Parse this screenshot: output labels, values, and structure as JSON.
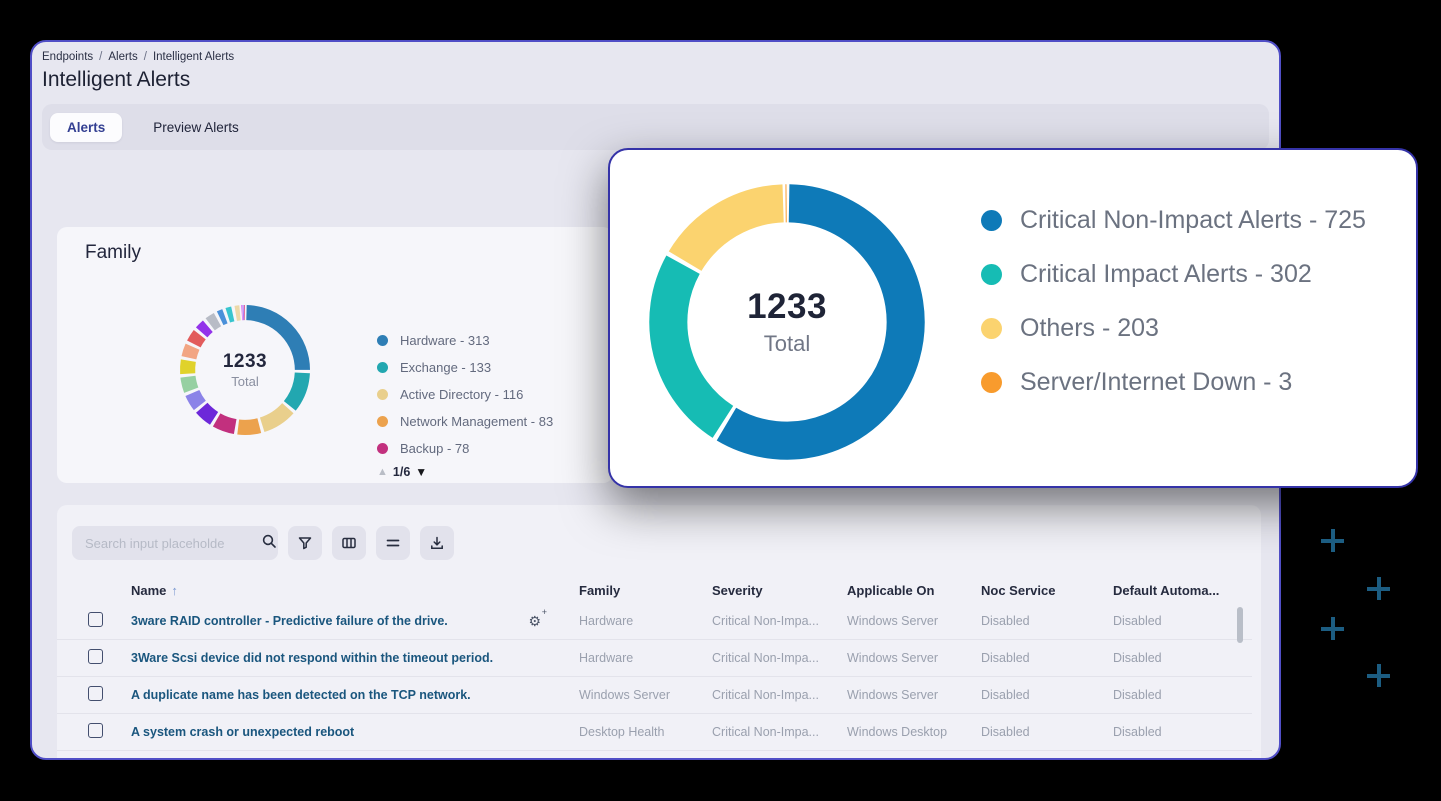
{
  "breadcrumb": {
    "items": [
      "Endpoints",
      "Alerts",
      "Intelligent Alerts"
    ],
    "separator": "/"
  },
  "page": {
    "title": "Intelligent Alerts"
  },
  "tabs": [
    {
      "label": "Alerts",
      "active": true
    },
    {
      "label": "Preview Alerts",
      "active": false
    }
  ],
  "family_card": {
    "title": "Family",
    "center_value": "1233",
    "center_label": "Total",
    "pagination": {
      "label": "1/6",
      "prev_icon": "▲",
      "next_icon": "▼"
    }
  },
  "overlay_card": {
    "center_value": "1233",
    "center_label": "Total"
  },
  "chart_data": [
    {
      "type": "donut",
      "title": "Family",
      "total": 1233,
      "center_text": [
        "1233",
        "Total"
      ],
      "legend_position": "right",
      "legend_pagination": "1/6",
      "segments": [
        {
          "label": "Hardware",
          "value": 313,
          "color": "#2e7eb5"
        },
        {
          "label": "Exchange",
          "value": 133,
          "color": "#22a7b0"
        },
        {
          "label": "Active Directory",
          "value": 116,
          "color": "#e9cf8c"
        },
        {
          "label": "Network Management",
          "value": 83,
          "color": "#eca24d"
        },
        {
          "label": "Backup",
          "value": 78,
          "color": "#c2307e"
        },
        {
          "label": "",
          "value": 66,
          "color": "#6d28d9",
          "estimated": true
        },
        {
          "label": "",
          "value": 60,
          "color": "#8b83e8",
          "estimated": true
        },
        {
          "label": "",
          "value": 58,
          "color": "#96d0a2",
          "estimated": true
        },
        {
          "label": "",
          "value": 55,
          "color": "#e0d22b",
          "estimated": true
        },
        {
          "label": "",
          "value": 50,
          "color": "#f2a583",
          "estimated": true
        },
        {
          "label": "",
          "value": 48,
          "color": "#e25c5c",
          "estimated": true
        },
        {
          "label": "",
          "value": 40,
          "color": "#9333ea",
          "estimated": true
        },
        {
          "label": "",
          "value": 40,
          "color": "#b8bcc6",
          "estimated": true
        },
        {
          "label": "",
          "value": 28,
          "color": "#4a90d9",
          "estimated": true
        },
        {
          "label": "",
          "value": 28,
          "color": "#38c5ce",
          "estimated": true
        },
        {
          "label": "",
          "value": 25,
          "color": "#ecd9a9",
          "estimated": true
        },
        {
          "label": "",
          "value": 4,
          "color": "#d946ef",
          "estimated": true
        },
        {
          "label": "",
          "value": 4,
          "color": "#7c3aed",
          "estimated": true
        },
        {
          "label": "",
          "value": 4,
          "color": "#db2777",
          "estimated": true
        }
      ],
      "legend_visible_count": 5
    },
    {
      "type": "donut",
      "title": "",
      "total": 1233,
      "center_text": [
        "1233",
        "Total"
      ],
      "legend_position": "right",
      "segments": [
        {
          "label": "Critical Non-Impact Alerts",
          "value": 725,
          "color": "#0e7ab8"
        },
        {
          "label": "Critical Impact Alerts",
          "value": 302,
          "color": "#16bcb4"
        },
        {
          "label": "Others",
          "value": 203,
          "color": "#fbd36f"
        },
        {
          "label": "Server/Internet Down",
          "value": 3,
          "color": "#f89b2d"
        }
      ],
      "legend_visible_count": 4
    }
  ],
  "table": {
    "search_placeholder": "Search input placeholde",
    "toolbar_icons": [
      "search",
      "filter",
      "columns",
      "row-density",
      "download"
    ],
    "columns": [
      "Name",
      "Family",
      "Severity",
      "Applicable On",
      "Noc Service",
      "Default Automa..."
    ],
    "sort": {
      "column": "Name",
      "direction": "asc",
      "icon": "↑"
    },
    "rows": [
      {
        "name": "3ware RAID controller - Predictive failure of the drive.",
        "family": "Hardware",
        "severity": "Critical Non-Impa...",
        "applicable_on": "Windows Server",
        "noc_service": "Disabled",
        "default_automation": "Disabled",
        "gear": true
      },
      {
        "name": "3Ware Scsi device did not respond within the timeout period.",
        "family": "Hardware",
        "severity": "Critical Non-Impa...",
        "applicable_on": "Windows Server",
        "noc_service": "Disabled",
        "default_automation": "Disabled",
        "gear": false
      },
      {
        "name": "A duplicate name has been detected on the TCP network.",
        "family": "Windows Server",
        "severity": "Critical Non-Impa...",
        "applicable_on": "Windows Server",
        "noc_service": "Disabled",
        "default_automation": "Disabled",
        "gear": false
      },
      {
        "name": "A system crash or unexpected reboot",
        "family": "Desktop Health",
        "severity": "Critical Non-Impa...",
        "applicable_on": "Windows Desktop",
        "noc_service": "Disabled",
        "default_automation": "Disabled",
        "gear": false
      }
    ]
  },
  "colors": {
    "window_bg": "#e7e7f0",
    "window_border": "#504ec6",
    "popup_border": "#3533a8",
    "tabstrip_bg": "#dedee9",
    "card_bg": "#f6f6fa",
    "table_card_bg": "#f1f1f7",
    "accent_blue": "#0e7ab8",
    "plus_mark": "#1c5d82",
    "link_text": "#1a567e"
  }
}
